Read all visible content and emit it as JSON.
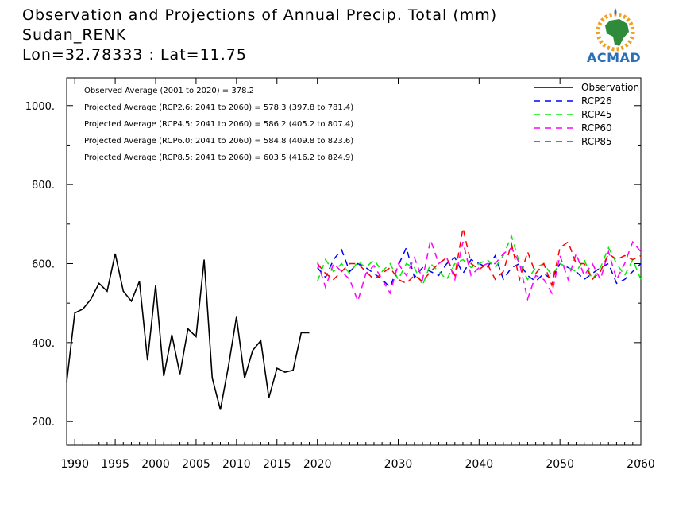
{
  "title": {
    "line1": "Observation and Projections of Annual Precip. Total (mm)",
    "line2": "Sudan_RENK",
    "line3": "Lon=32.78333 : Lat=11.75"
  },
  "logo": {
    "text": "ACMAD"
  },
  "colors": {
    "observation": "#000000",
    "rcp26": "#0000ff",
    "rcp45": "#00ee00",
    "rcp60": "#ff00ff",
    "rcp85": "#ff0000"
  },
  "chart_data": {
    "type": "line",
    "xlim": [
      1989,
      2060
    ],
    "ylim": [
      140,
      1070
    ],
    "grid": false,
    "legend_position": "top-right",
    "x_ticks": [
      1990,
      1995,
      2000,
      2005,
      2010,
      2015,
      2020,
      2030,
      2040,
      2050,
      2060
    ],
    "y_ticks": [
      200,
      400,
      600,
      800,
      1000
    ],
    "y_tick_labels": [
      "200.",
      "400.",
      "600.",
      "800.",
      "1000."
    ],
    "annotations": [
      "Observed Average (2001 to 2020) = 378.2",
      "Projected Average (RCP2.6: 2041 to 2060) = 578.3 (397.8 to 781.4)",
      "Projected Average (RCP4.5: 2041 to 2060) = 586.2 (405.2 to 807.4)",
      "Projected Average (RCP6.0: 2041 to 2060) = 584.8 (409.8 to 823.6)",
      "Projected Average (RCP8.5: 2041 to 2060) = 603.5 (416.2 to 824.9)"
    ],
    "series": [
      {
        "name": "Observation",
        "key": "observation",
        "style": "solid",
        "x": [
          1989,
          1990,
          1991,
          1992,
          1993,
          1994,
          1995,
          1996,
          1997,
          1998,
          1999,
          2000,
          2001,
          2002,
          2003,
          2004,
          2005,
          2006,
          2007,
          2008,
          2009,
          2010,
          2011,
          2012,
          2013,
          2014,
          2015,
          2016,
          2017,
          2018,
          2019
        ],
        "values": [
          300,
          475,
          485,
          510,
          550,
          530,
          625,
          530,
          505,
          555,
          355,
          545,
          315,
          420,
          320,
          435,
          415,
          610,
          310,
          230,
          340,
          465,
          310,
          380,
          405,
          260,
          335,
          325,
          330,
          425,
          425
        ]
      },
      {
        "name": "RCP26",
        "key": "rcp26",
        "style": "dashed",
        "x": [
          2020,
          2021,
          2022,
          2023,
          2024,
          2025,
          2026,
          2027,
          2028,
          2029,
          2030,
          2031,
          2032,
          2033,
          2034,
          2035,
          2036,
          2037,
          2038,
          2039,
          2040,
          2041,
          2042,
          2043,
          2044,
          2045,
          2046,
          2047,
          2048,
          2049,
          2050,
          2051,
          2052,
          2053,
          2054,
          2055,
          2056,
          2057,
          2058,
          2059,
          2060
        ],
        "values": [
          590,
          565,
          610,
          635,
          580,
          600,
          590,
          575,
          560,
          540,
          595,
          640,
          565,
          590,
          580,
          570,
          600,
          615,
          575,
          610,
          600,
          590,
          620,
          560,
          590,
          600,
          570,
          555,
          575,
          560,
          600,
          590,
          580,
          560,
          575,
          590,
          600,
          550,
          560,
          580,
          600
        ]
      },
      {
        "name": "RCP45",
        "key": "rcp45",
        "style": "dashed",
        "x": [
          2020,
          2021,
          2022,
          2023,
          2024,
          2025,
          2026,
          2027,
          2028,
          2029,
          2030,
          2031,
          2032,
          2033,
          2034,
          2035,
          2036,
          2037,
          2038,
          2039,
          2040,
          2041,
          2042,
          2043,
          2044,
          2045,
          2046,
          2047,
          2048,
          2049,
          2050,
          2051,
          2052,
          2053,
          2054,
          2055,
          2056,
          2057,
          2058,
          2059,
          2060
        ],
        "values": [
          555,
          610,
          580,
          600,
          575,
          605,
          590,
          610,
          580,
          600,
          560,
          600,
          590,
          545,
          600,
          580,
          560,
          600,
          610,
          590,
          600,
          610,
          590,
          620,
          670,
          600,
          560,
          590,
          600,
          570,
          600,
          590,
          580,
          610,
          560,
          590,
          640,
          600,
          570,
          610,
          560
        ]
      },
      {
        "name": "RCP60",
        "key": "rcp60",
        "style": "dashed",
        "x": [
          2020,
          2021,
          2022,
          2023,
          2024,
          2025,
          2026,
          2027,
          2028,
          2029,
          2030,
          2031,
          2032,
          2033,
          2034,
          2035,
          2036,
          2037,
          2038,
          2039,
          2040,
          2041,
          2042,
          2043,
          2044,
          2045,
          2046,
          2047,
          2048,
          2049,
          2050,
          2051,
          2052,
          2053,
          2054,
          2055,
          2056,
          2057,
          2058,
          2059,
          2060
        ],
        "values": [
          605,
          540,
          600,
          580,
          560,
          505,
          575,
          595,
          560,
          525,
          600,
          570,
          615,
          560,
          660,
          600,
          615,
          560,
          655,
          570,
          590,
          600,
          600,
          625,
          640,
          600,
          510,
          570,
          560,
          525,
          620,
          560,
          625,
          570,
          600,
          560,
          630,
          560,
          600,
          655,
          630
        ]
      },
      {
        "name": "RCP85",
        "key": "rcp85",
        "style": "dashed",
        "x": [
          2020,
          2021,
          2022,
          2023,
          2024,
          2025,
          2026,
          2027,
          2028,
          2029,
          2030,
          2031,
          2032,
          2033,
          2034,
          2035,
          2036,
          2037,
          2038,
          2039,
          2040,
          2041,
          2042,
          2043,
          2044,
          2045,
          2046,
          2047,
          2048,
          2049,
          2050,
          2051,
          2052,
          2053,
          2054,
          2055,
          2056,
          2057,
          2058,
          2059,
          2060
        ],
        "values": [
          600,
          575,
          560,
          580,
          600,
          600,
          580,
          560,
          575,
          590,
          560,
          550,
          570,
          555,
          580,
          600,
          615,
          570,
          690,
          600,
          585,
          600,
          560,
          580,
          650,
          560,
          630,
          575,
          600,
          545,
          640,
          655,
          600,
          600,
          560,
          580,
          625,
          610,
          620,
          610,
          620
        ]
      }
    ]
  }
}
